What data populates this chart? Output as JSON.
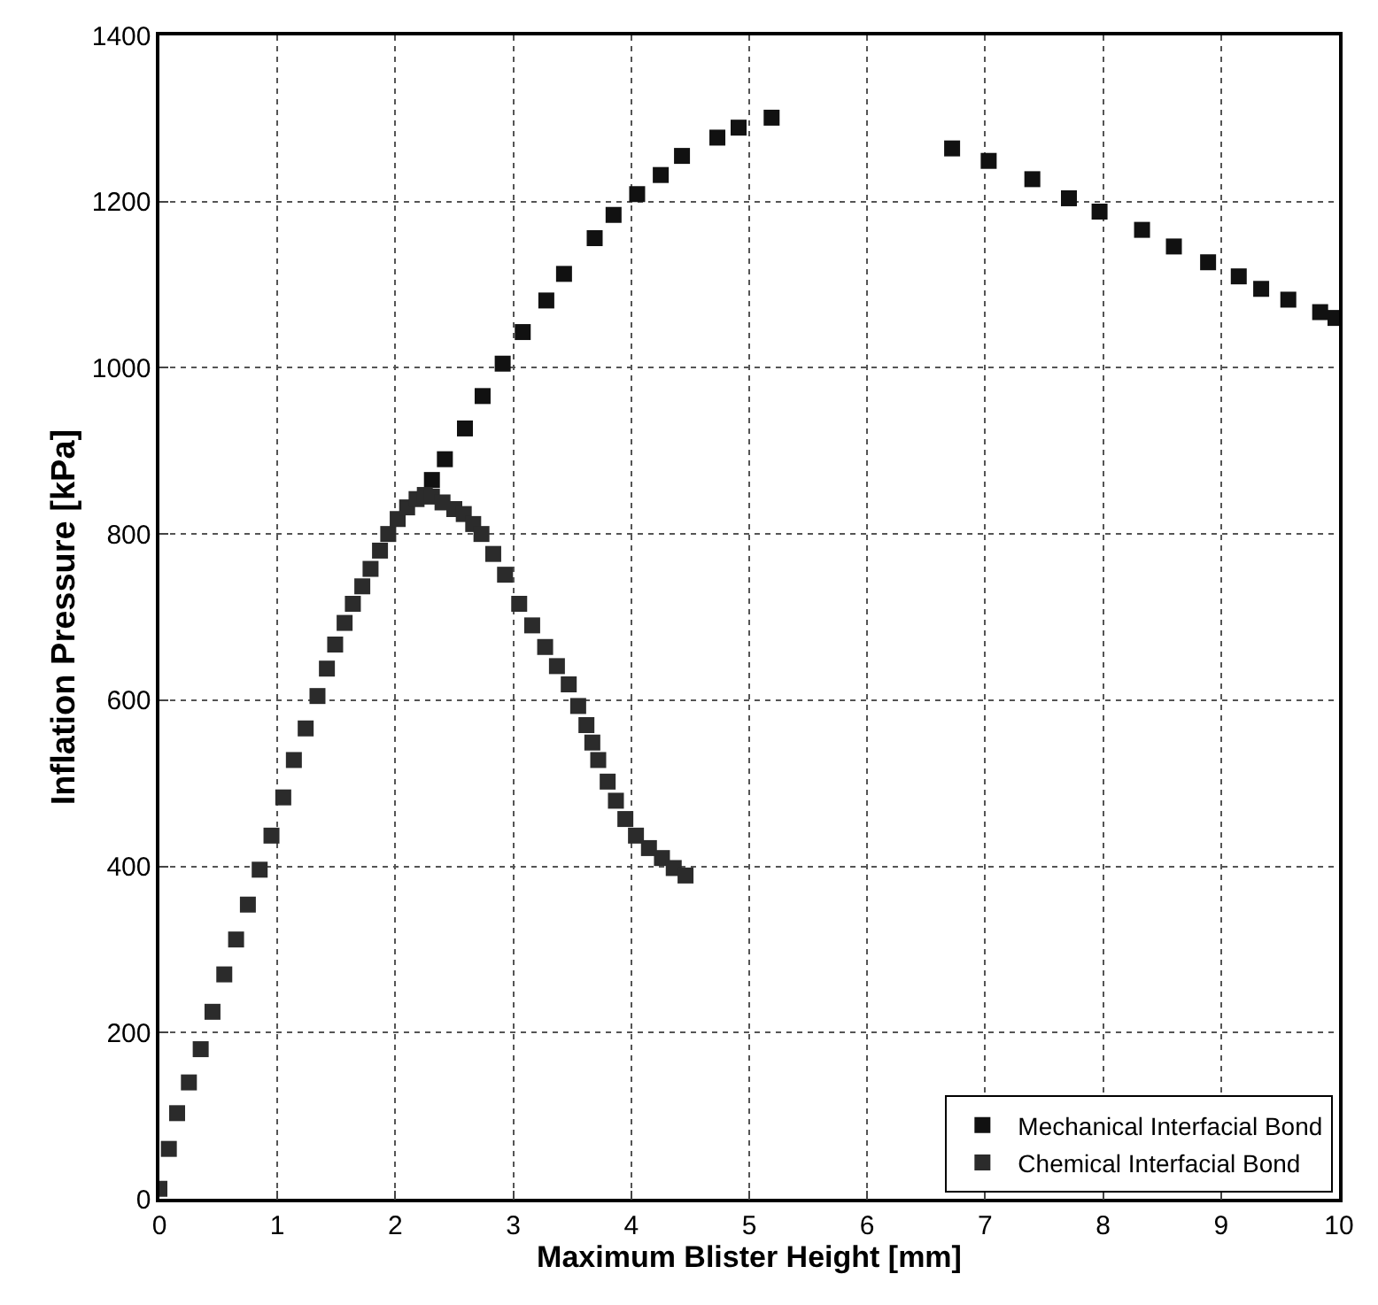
{
  "chart_data": {
    "type": "scatter",
    "xlabel": "Maximum Blister Height [mm]",
    "ylabel": "Inflation Pressure [kPa]",
    "xlim": [
      0,
      10
    ],
    "xticks": [
      0,
      1,
      2,
      3,
      4,
      5,
      6,
      7,
      8,
      9,
      10
    ],
    "ylim": [
      0,
      1400
    ],
    "yticks": [
      0,
      200,
      400,
      600,
      800,
      1000,
      1200,
      1400
    ],
    "grid": true,
    "legend": "bottom right",
    "marker": "square",
    "series": [
      {
        "name": "Mechanical Interfacial Bond",
        "color": "#111111",
        "x": [
          2.31,
          2.42,
          2.59,
          2.74,
          2.91,
          3.08,
          3.28,
          3.43,
          3.69,
          3.85,
          4.05,
          4.25,
          4.43,
          4.73,
          4.91,
          5.19,
          6.72,
          7.03,
          7.4,
          7.71,
          7.97,
          8.33,
          8.6,
          8.89,
          9.15,
          9.34,
          9.57,
          9.84,
          9.97
        ],
        "values": [
          865,
          890,
          927,
          966,
          1005,
          1043,
          1081,
          1113,
          1156,
          1184,
          1209,
          1232,
          1255,
          1277,
          1289,
          1301,
          1264,
          1249,
          1227,
          1204,
          1188,
          1166,
          1146,
          1127,
          1110,
          1095,
          1082,
          1067,
          1060
        ]
      },
      {
        "name": "Chemical Interfacial Bond",
        "color": "#2b2b2b",
        "x": [
          0.0,
          0.08,
          0.15,
          0.25,
          0.35,
          0.45,
          0.55,
          0.65,
          0.75,
          0.85,
          0.95,
          1.05,
          1.14,
          1.24,
          1.34,
          1.42,
          1.49,
          1.57,
          1.64,
          1.72,
          1.79,
          1.87,
          1.94,
          2.02,
          2.1,
          2.18,
          2.25,
          2.31,
          2.4,
          2.5,
          2.58,
          2.66,
          2.73,
          2.83,
          2.93,
          3.05,
          3.16,
          3.27,
          3.37,
          3.47,
          3.55,
          3.62,
          3.67,
          3.72,
          3.8,
          3.87,
          3.95,
          4.04,
          4.15,
          4.26,
          4.36,
          4.46
        ],
        "values": [
          12,
          60,
          103,
          140,
          180,
          225,
          270,
          312,
          354,
          396,
          437,
          483,
          528,
          566,
          605,
          638,
          667,
          693,
          716,
          737,
          758,
          780,
          800,
          818,
          832,
          842,
          847,
          845,
          838,
          830,
          824,
          812,
          800,
          776,
          751,
          716,
          690,
          664,
          641,
          619,
          593,
          570,
          549,
          528,
          502,
          479,
          457,
          437,
          422,
          410,
          398,
          389
        ]
      }
    ]
  }
}
